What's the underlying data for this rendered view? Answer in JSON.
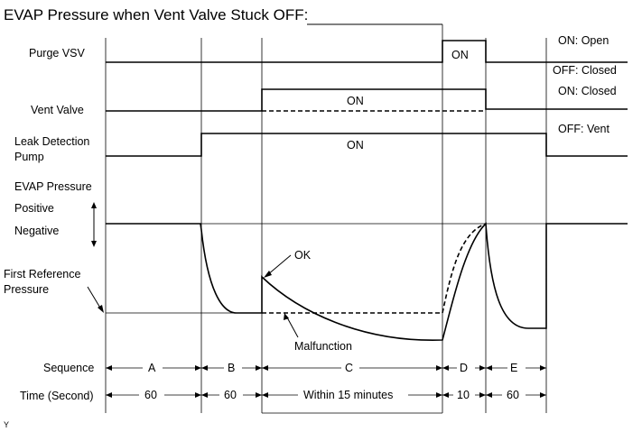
{
  "title": "EVAP Pressure when Vent Valve Stuck OFF:",
  "signals": {
    "purge_vsv": "Purge VSV",
    "vent_valve": "Vent Valve",
    "leak_pump_line1": "Leak Detection",
    "leak_pump_line2": "Pump",
    "evap_pressure": "EVAP Pressure",
    "positive": "Positive",
    "negative": "Negative",
    "first_ref_line1": "First Reference",
    "first_ref_line2": "Pressure"
  },
  "states": {
    "purge_on": "ON",
    "vent_on": "ON",
    "pump_on": "ON"
  },
  "legend": {
    "purge_on": "ON: Open",
    "purge_off": "OFF: Closed",
    "vent_on": "ON: Closed",
    "vent_off": "OFF: Vent"
  },
  "annotations": {
    "ok": "OK",
    "malfunction": "Malfunction"
  },
  "sequence": {
    "label": "Sequence",
    "items": [
      "A",
      "B",
      "C",
      "D",
      "E"
    ]
  },
  "time": {
    "label": "Time (Second)",
    "items": [
      "60",
      "60",
      "Within 15 minutes",
      "10",
      "60"
    ]
  },
  "footer_mark": "Y"
}
